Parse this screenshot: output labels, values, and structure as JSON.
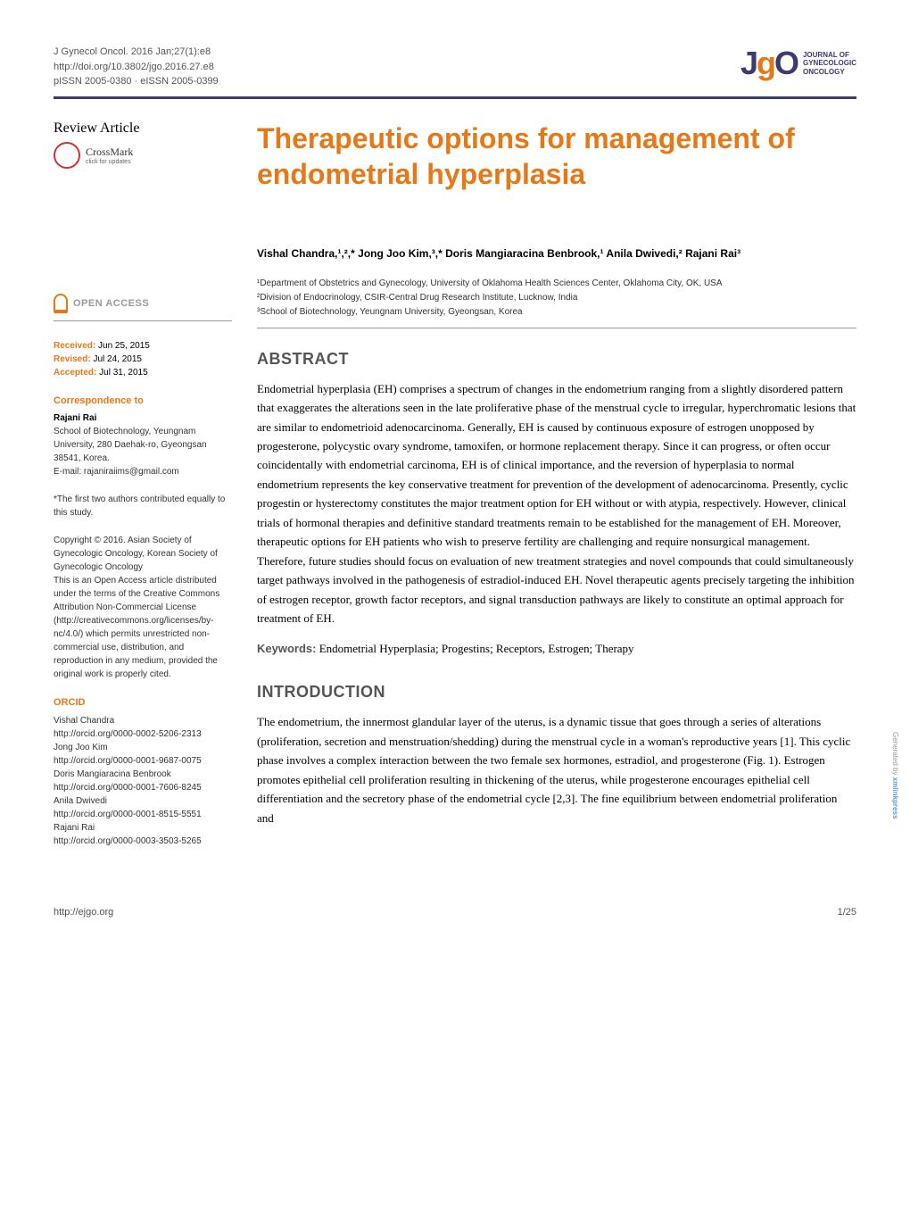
{
  "journal": {
    "citation": "J Gynecol Oncol. 2016 Jan;27(1):e8",
    "doi": "http://doi.org/10.3802/jgo.2016.27.e8",
    "issn": "pISSN 2005-0380 · eISSN 2005-0399",
    "logo_text": "JgO",
    "logo_caption_1": "JOURNAL OF",
    "logo_caption_2": "GYNECOLOGIC",
    "logo_caption_3": "ONCOLOGY"
  },
  "article_type": "Review Article",
  "crossmark": {
    "label": "CrossMark",
    "sub": "click for updates"
  },
  "open_access": "OPEN ACCESS",
  "dates": {
    "received_label": "Received:",
    "received": "Jun 25, 2015",
    "revised_label": "Revised:",
    "revised": "Jul 24, 2015",
    "accepted_label": "Accepted:",
    "accepted": "Jul 31, 2015"
  },
  "correspondence": {
    "heading": "Correspondence to",
    "name": "Rajani Rai",
    "address": "School of Biotechnology, Yeungnam University, 280 Daehak-ro, Gyeongsan 38541, Korea.",
    "email": "E-mail: rajaniraiims@gmail.com"
  },
  "equal_contrib": "*The first two authors contributed equally to this study.",
  "copyright": {
    "line": "Copyright © 2016. Asian Society of Gynecologic Oncology, Korean Society of Gynecologic Oncology",
    "license": "This is an Open Access article distributed under the terms of the Creative Commons Attribution Non-Commercial License (http://creativecommons.org/licenses/by-nc/4.0/) which permits unrestricted non-commercial use, distribution, and reproduction in any medium, provided the original work is properly cited."
  },
  "orcid": {
    "heading": "ORCID",
    "entries": [
      {
        "name": "Vishal Chandra",
        "url": "http://orcid.org/0000-0002-5206-2313"
      },
      {
        "name": "Jong Joo Kim",
        "url": "http://orcid.org/0000-0001-9687-0075"
      },
      {
        "name": "Doris Mangiaracina Benbrook",
        "url": "http://orcid.org/0000-0001-7606-8245"
      },
      {
        "name": "Anila Dwivedi",
        "url": "http://orcid.org/0000-0001-8515-5551"
      },
      {
        "name": "Rajani Rai",
        "url": "http://orcid.org/0000-0003-3503-5265"
      }
    ]
  },
  "title": "Therapeutic options for management of endometrial hyperplasia",
  "authors": "Vishal Chandra,¹,²,* Jong Joo Kim,³,* Doris Mangiaracina Benbrook,¹ Anila Dwivedi,² Rajani Rai³",
  "affiliations": [
    "¹Department of Obstetrics and Gynecology, University of Oklahoma Health Sciences Center, Oklahoma City, OK, USA",
    "²Division of Endocrinology, CSIR-Central Drug Research Institute, Lucknow, India",
    "³School of Biotechnology, Yeungnam University, Gyeongsan, Korea"
  ],
  "abstract": {
    "heading": "ABSTRACT",
    "text": "Endometrial hyperplasia (EH) comprises a spectrum of changes in the endometrium ranging from a slightly disordered pattern that exaggerates the alterations seen in the late proliferative phase of the menstrual cycle to irregular, hyperchromatic lesions that are similar to endometrioid adenocarcinoma. Generally, EH is caused by continuous exposure of estrogen unopposed by progesterone, polycystic ovary syndrome, tamoxifen, or hormone replacement therapy. Since it can progress, or often occur coincidentally with endometrial carcinoma, EH is of clinical importance, and the reversion of hyperplasia to normal endometrium represents the key conservative treatment for prevention of the development of adenocarcinoma. Presently, cyclic progestin or hysterectomy constitutes the major treatment option for EH without or with atypia, respectively. However, clinical trials of hormonal therapies and definitive standard treatments remain to be established for the management of EH. Moreover, therapeutic options for EH patients who wish to preserve fertility are challenging and require nonsurgical management. Therefore, future studies should focus on evaluation of new treatment strategies and novel compounds that could simultaneously target pathways involved in the pathogenesis of estradiol-induced EH. Novel therapeutic agents precisely targeting the inhibition of estrogen receptor, growth factor receptors, and signal transduction pathways are likely to constitute an optimal approach for treatment of EH."
  },
  "keywords": {
    "label": "Keywords:",
    "text": "Endometrial Hyperplasia; Progestins; Receptors, Estrogen; Therapy"
  },
  "introduction": {
    "heading": "INTRODUCTION",
    "text": "The endometrium, the innermost glandular layer of the uterus, is a dynamic tissue that goes through a series of alterations (proliferation, secretion and menstruation/shedding) during the menstrual cycle in a woman's reproductive years [1]. This cyclic phase involves a complex interaction between the two female sex hormones, estradiol, and progesterone (Fig. 1). Estrogen promotes epithelial cell proliferation resulting in thickening of the uterus, while progesterone encourages epithelial cell differentiation and the secretory phase of the endometrial cycle [2,3]. The fine equilibrium between endometrial proliferation and"
  },
  "footer": {
    "left": "http://ejgo.org",
    "right": "1/25"
  },
  "generated_by": "Generated by xmlinkpress",
  "colors": {
    "brand_orange": "#e67817",
    "brand_navy": "#3b3b6d",
    "heading_gray": "#555555",
    "text_black": "#000000",
    "rule_gray": "#999999",
    "background": "#ffffff"
  },
  "typography": {
    "title_fontsize": 32,
    "title_weight": "bold",
    "section_heading_fontsize": 18,
    "body_fontsize": 13,
    "sidebar_fontsize": 10,
    "authors_fontsize": 12
  }
}
